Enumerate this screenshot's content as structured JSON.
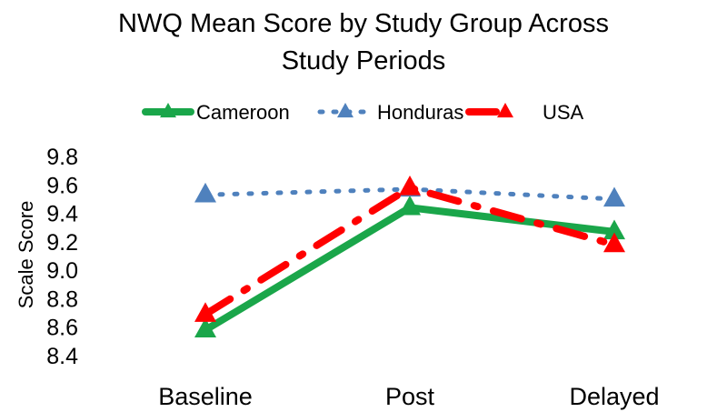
{
  "chart_data": {
    "type": "line",
    "title_lines": [
      "NWQ Mean Score by Study Group Across",
      "Study Periods"
    ],
    "xlabel": "",
    "ylabel": "Scale Score",
    "categories": [
      "Baseline",
      "Post",
      "Delayed"
    ],
    "ylim": [
      8.4,
      9.8
    ],
    "yticks": [
      "9.8",
      "9.6",
      "9.4",
      "9.2",
      "9.0",
      "8.8",
      "8.6",
      "8.4"
    ],
    "grid": false,
    "legend_position": "top",
    "series": [
      {
        "name": "Cameroon",
        "values": [
          8.58,
          9.44,
          9.27
        ],
        "color": "#1aa64a",
        "line_style": "solid",
        "marker": "triangle"
      },
      {
        "name": "Honduras",
        "values": [
          9.53,
          9.57,
          9.5
        ],
        "color": "#4f81bd",
        "line_style": "dotted",
        "marker": "triangle"
      },
      {
        "name": "USA",
        "values": [
          8.69,
          9.58,
          9.18
        ],
        "color": "#ff0000",
        "line_style": "dash-dot",
        "marker": "triangle"
      }
    ]
  }
}
